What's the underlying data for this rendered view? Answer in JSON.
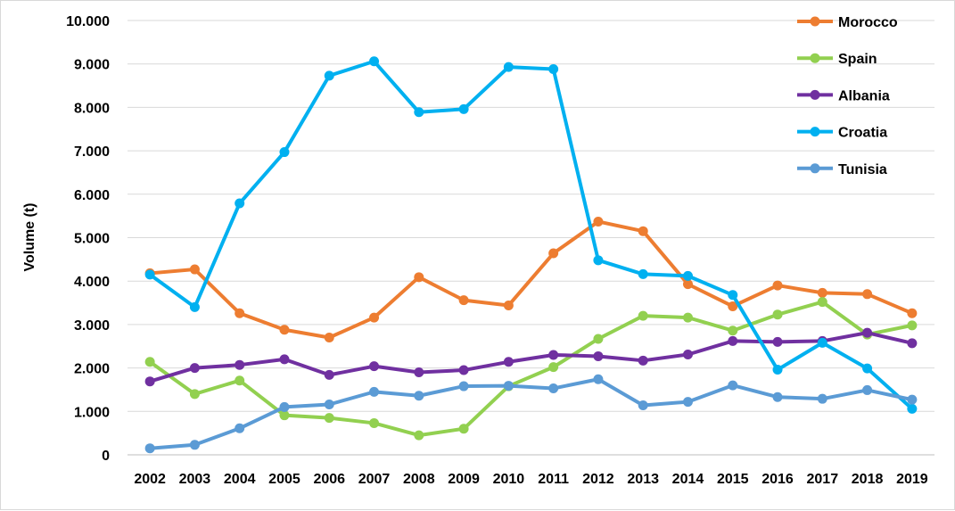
{
  "chart_data": {
    "type": "line",
    "title": "",
    "xlabel": "",
    "ylabel": "Volume (t)",
    "ylim": [
      0,
      10000
    ],
    "y_ticks": [
      0,
      1000,
      2000,
      3000,
      4000,
      5000,
      6000,
      7000,
      8000,
      9000,
      10000
    ],
    "y_tick_labels": [
      "0",
      "1.000",
      "2.000",
      "3.000",
      "4.000",
      "5.000",
      "6.000",
      "7.000",
      "8.000",
      "9.000",
      "10.000"
    ],
    "grid": true,
    "legend_position": "top-right",
    "categories": [
      "2002",
      "2003",
      "2004",
      "2005",
      "2006",
      "2007",
      "2008",
      "2009",
      "2010",
      "2011",
      "2012",
      "2013",
      "2014",
      "2015",
      "2016",
      "2017",
      "2018",
      "2019"
    ],
    "series": [
      {
        "name": "Morocco",
        "color": "#ed7d31",
        "values": [
          4180,
          4270,
          3260,
          2880,
          2700,
          3160,
          4090,
          3560,
          3440,
          4640,
          5370,
          5150,
          3930,
          3420,
          3900,
          3730,
          3700,
          3260
        ]
      },
      {
        "name": "Spain",
        "color": "#92d050",
        "values": [
          2140,
          1400,
          1710,
          910,
          850,
          730,
          450,
          600,
          1580,
          2020,
          2670,
          3200,
          3160,
          2860,
          3230,
          3520,
          2770,
          2980
        ]
      },
      {
        "name": "Albania",
        "color": "#7030a0",
        "values": [
          1690,
          2000,
          2070,
          2200,
          1840,
          2040,
          1900,
          1950,
          2140,
          2300,
          2270,
          2170,
          2310,
          2620,
          2600,
          2620,
          2810,
          2570
        ]
      },
      {
        "name": "Croatia",
        "color": "#00b0f0",
        "values": [
          4150,
          3400,
          5790,
          6970,
          8730,
          9060,
          7890,
          7960,
          8930,
          8880,
          4480,
          4160,
          4120,
          3680,
          1960,
          2580,
          1990,
          1060
        ]
      },
      {
        "name": "Tunisia",
        "color": "#5b9bd5",
        "values": [
          150,
          230,
          610,
          1100,
          1160,
          1450,
          1360,
          1580,
          1590,
          1530,
          1740,
          1140,
          1220,
          1600,
          1330,
          1290,
          1490,
          1270
        ]
      }
    ]
  }
}
